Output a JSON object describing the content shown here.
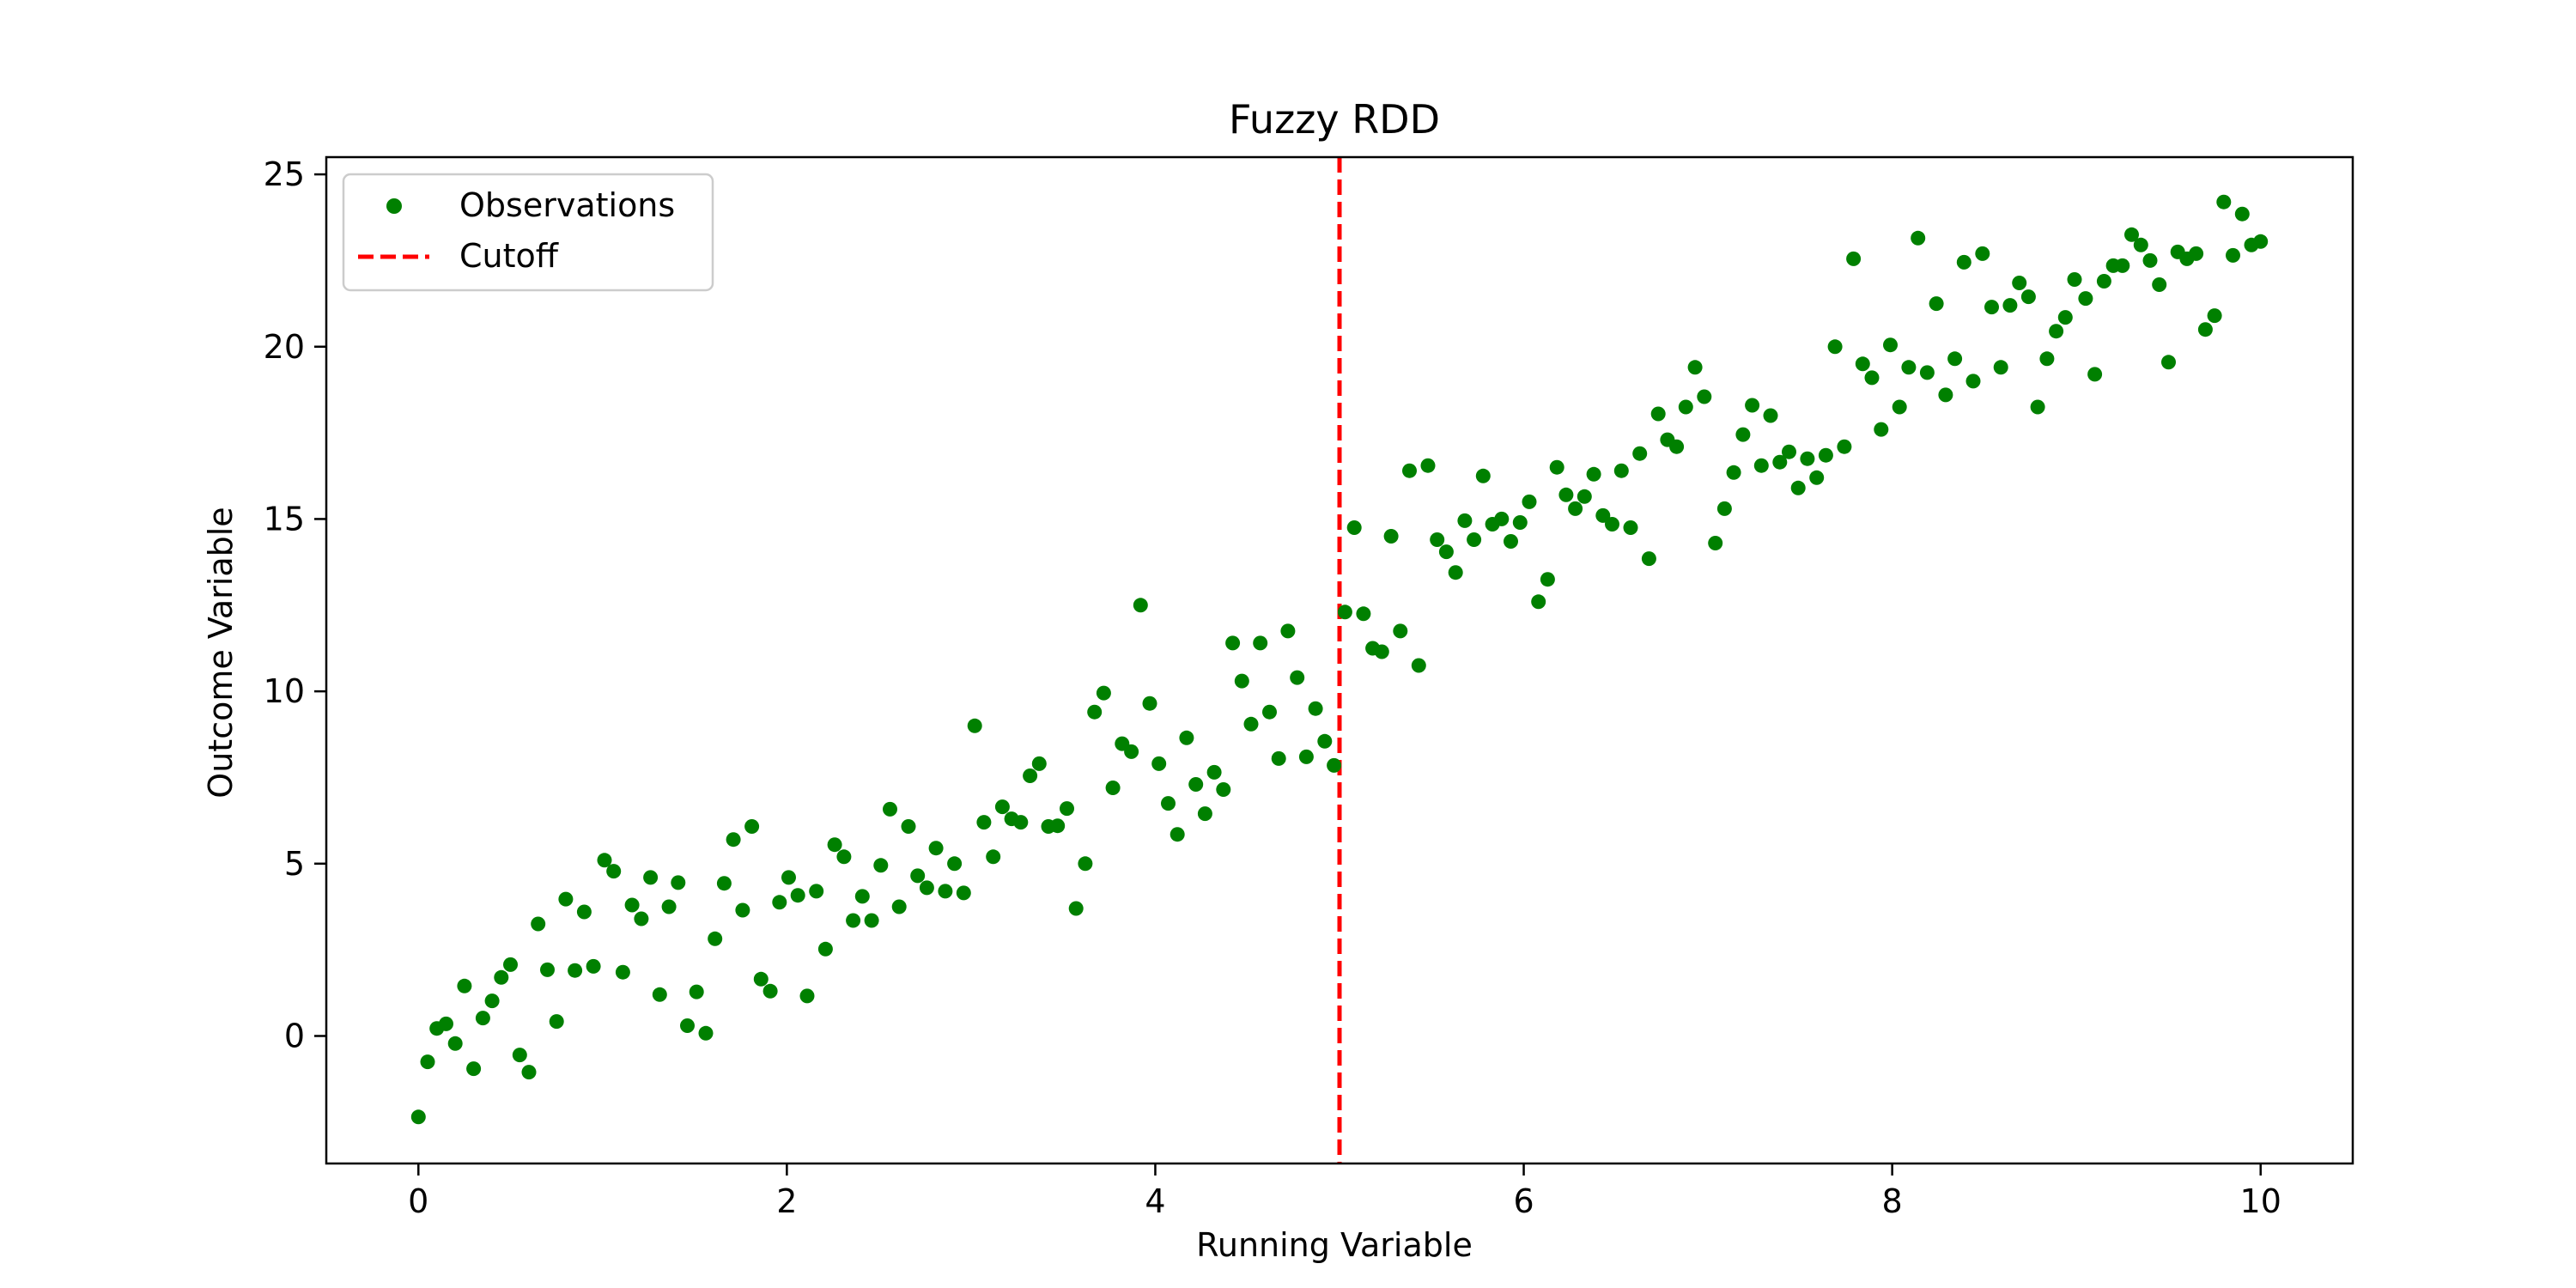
{
  "chart_data": {
    "type": "scatter",
    "title": "Fuzzy RDD",
    "xlabel": "Running Variable",
    "ylabel": "Outcome Variable",
    "xlim": [
      -0.5,
      10.5
    ],
    "ylim": [
      -3.7,
      25.5
    ],
    "xticks": [
      0,
      2,
      4,
      6,
      8,
      10
    ],
    "yticks": [
      0,
      5,
      10,
      15,
      20,
      25
    ],
    "grid": false,
    "legend_position": "upper-left",
    "cutoff": 5,
    "series": [
      {
        "name": "Observations",
        "color": "#008000",
        "points": [
          [
            0.0,
            -2.35
          ],
          [
            0.05,
            -0.75
          ],
          [
            0.1,
            0.22
          ],
          [
            0.15,
            0.35
          ],
          [
            0.2,
            -0.22
          ],
          [
            0.25,
            1.45
          ],
          [
            0.3,
            -0.95
          ],
          [
            0.35,
            0.52
          ],
          [
            0.4,
            1.02
          ],
          [
            0.45,
            1.7
          ],
          [
            0.5,
            2.07
          ],
          [
            0.55,
            -0.55
          ],
          [
            0.6,
            -1.05
          ],
          [
            0.65,
            3.25
          ],
          [
            0.7,
            1.92
          ],
          [
            0.75,
            0.42
          ],
          [
            0.8,
            3.97
          ],
          [
            0.85,
            1.9
          ],
          [
            0.9,
            3.6
          ],
          [
            0.95,
            2.02
          ],
          [
            1.01,
            5.1
          ],
          [
            1.06,
            4.78
          ],
          [
            1.11,
            1.85
          ],
          [
            1.16,
            3.8
          ],
          [
            1.21,
            3.4
          ],
          [
            1.26,
            4.6
          ],
          [
            1.31,
            1.2
          ],
          [
            1.36,
            3.75
          ],
          [
            1.41,
            4.45
          ],
          [
            1.46,
            0.3
          ],
          [
            1.51,
            1.28
          ],
          [
            1.56,
            0.08
          ],
          [
            1.61,
            2.82
          ],
          [
            1.66,
            4.43
          ],
          [
            1.71,
            5.7
          ],
          [
            1.76,
            3.65
          ],
          [
            1.81,
            6.08
          ],
          [
            1.86,
            1.65
          ],
          [
            1.91,
            1.3
          ],
          [
            1.96,
            3.88
          ],
          [
            2.01,
            4.6
          ],
          [
            2.06,
            4.08
          ],
          [
            2.11,
            1.16
          ],
          [
            2.16,
            4.2
          ],
          [
            2.21,
            2.52
          ],
          [
            2.26,
            5.55
          ],
          [
            2.31,
            5.2
          ],
          [
            2.36,
            3.35
          ],
          [
            2.41,
            4.05
          ],
          [
            2.46,
            3.35
          ],
          [
            2.51,
            4.95
          ],
          [
            2.56,
            6.58
          ],
          [
            2.61,
            3.75
          ],
          [
            2.66,
            6.08
          ],
          [
            2.71,
            4.65
          ],
          [
            2.76,
            4.3
          ],
          [
            2.81,
            5.45
          ],
          [
            2.86,
            4.2
          ],
          [
            2.91,
            5.0
          ],
          [
            2.96,
            4.15
          ],
          [
            3.02,
            9.0
          ],
          [
            3.07,
            6.2
          ],
          [
            3.12,
            5.2
          ],
          [
            3.17,
            6.65
          ],
          [
            3.22,
            6.3
          ],
          [
            3.27,
            6.2
          ],
          [
            3.32,
            7.55
          ],
          [
            3.37,
            7.9
          ],
          [
            3.42,
            6.08
          ],
          [
            3.47,
            6.1
          ],
          [
            3.52,
            6.6
          ],
          [
            3.57,
            3.7
          ],
          [
            3.62,
            5.0
          ],
          [
            3.67,
            9.4
          ],
          [
            3.72,
            9.95
          ],
          [
            3.77,
            7.2
          ],
          [
            3.82,
            8.48
          ],
          [
            3.87,
            8.25
          ],
          [
            3.92,
            12.5
          ],
          [
            3.97,
            9.65
          ],
          [
            4.02,
            7.9
          ],
          [
            4.07,
            6.75
          ],
          [
            4.12,
            5.85
          ],
          [
            4.17,
            8.65
          ],
          [
            4.22,
            7.3
          ],
          [
            4.27,
            6.45
          ],
          [
            4.32,
            7.65
          ],
          [
            4.37,
            7.15
          ],
          [
            4.42,
            11.4
          ],
          [
            4.47,
            10.3
          ],
          [
            4.52,
            9.05
          ],
          [
            4.57,
            11.4
          ],
          [
            4.62,
            9.4
          ],
          [
            4.67,
            8.05
          ],
          [
            4.72,
            11.75
          ],
          [
            4.77,
            10.4
          ],
          [
            4.82,
            8.1
          ],
          [
            4.87,
            9.5
          ],
          [
            4.92,
            8.55
          ],
          [
            4.97,
            7.85
          ],
          [
            5.03,
            12.3
          ],
          [
            5.08,
            14.75
          ],
          [
            5.13,
            12.25
          ],
          [
            5.18,
            11.25
          ],
          [
            5.23,
            11.15
          ],
          [
            5.28,
            14.5
          ],
          [
            5.33,
            11.75
          ],
          [
            5.38,
            16.4
          ],
          [
            5.43,
            10.75
          ],
          [
            5.48,
            16.55
          ],
          [
            5.53,
            14.4
          ],
          [
            5.58,
            14.05
          ],
          [
            5.63,
            13.45
          ],
          [
            5.68,
            14.95
          ],
          [
            5.73,
            14.4
          ],
          [
            5.78,
            16.25
          ],
          [
            5.83,
            14.85
          ],
          [
            5.88,
            15.0
          ],
          [
            5.93,
            14.35
          ],
          [
            5.98,
            14.9
          ],
          [
            6.03,
            15.5
          ],
          [
            6.08,
            12.6
          ],
          [
            6.13,
            13.25
          ],
          [
            6.18,
            16.5
          ],
          [
            6.23,
            15.7
          ],
          [
            6.28,
            15.3
          ],
          [
            6.33,
            15.65
          ],
          [
            6.38,
            16.3
          ],
          [
            6.43,
            15.1
          ],
          [
            6.48,
            14.85
          ],
          [
            6.53,
            16.4
          ],
          [
            6.58,
            14.75
          ],
          [
            6.63,
            16.9
          ],
          [
            6.68,
            13.85
          ],
          [
            6.73,
            18.05
          ],
          [
            6.78,
            17.3
          ],
          [
            6.83,
            17.1
          ],
          [
            6.88,
            18.25
          ],
          [
            6.93,
            19.4
          ],
          [
            6.98,
            18.55
          ],
          [
            7.04,
            14.3
          ],
          [
            7.09,
            15.3
          ],
          [
            7.14,
            16.35
          ],
          [
            7.19,
            17.45
          ],
          [
            7.24,
            18.3
          ],
          [
            7.29,
            16.55
          ],
          [
            7.34,
            18.0
          ],
          [
            7.39,
            16.65
          ],
          [
            7.44,
            16.95
          ],
          [
            7.49,
            15.9
          ],
          [
            7.54,
            16.75
          ],
          [
            7.59,
            16.2
          ],
          [
            7.64,
            16.85
          ],
          [
            7.69,
            20.0
          ],
          [
            7.74,
            17.1
          ],
          [
            7.79,
            22.55
          ],
          [
            7.84,
            19.5
          ],
          [
            7.89,
            19.1
          ],
          [
            7.94,
            17.6
          ],
          [
            7.99,
            20.05
          ],
          [
            8.04,
            18.25
          ],
          [
            8.09,
            19.4
          ],
          [
            8.14,
            23.15
          ],
          [
            8.19,
            19.25
          ],
          [
            8.24,
            21.25
          ],
          [
            8.29,
            18.6
          ],
          [
            8.34,
            19.65
          ],
          [
            8.39,
            22.45
          ],
          [
            8.44,
            19.0
          ],
          [
            8.49,
            22.7
          ],
          [
            8.54,
            21.15
          ],
          [
            8.59,
            19.4
          ],
          [
            8.64,
            21.2
          ],
          [
            8.69,
            21.85
          ],
          [
            8.74,
            21.45
          ],
          [
            8.79,
            18.25
          ],
          [
            8.84,
            19.65
          ],
          [
            8.89,
            20.45
          ],
          [
            8.94,
            20.85
          ],
          [
            8.99,
            21.95
          ],
          [
            9.05,
            21.4
          ],
          [
            9.1,
            19.2
          ],
          [
            9.15,
            21.9
          ],
          [
            9.2,
            22.35
          ],
          [
            9.25,
            22.35
          ],
          [
            9.3,
            23.25
          ],
          [
            9.35,
            22.95
          ],
          [
            9.4,
            22.5
          ],
          [
            9.45,
            21.8
          ],
          [
            9.5,
            19.55
          ],
          [
            9.55,
            22.75
          ],
          [
            9.6,
            22.55
          ],
          [
            9.65,
            22.7
          ],
          [
            9.7,
            20.5
          ],
          [
            9.75,
            20.9
          ],
          [
            9.8,
            24.2
          ],
          [
            9.85,
            22.65
          ],
          [
            9.9,
            23.85
          ],
          [
            9.95,
            22.95
          ],
          [
            10.0,
            23.05
          ]
        ]
      },
      {
        "name": "Cutoff",
        "color": "#ff0000",
        "style": "dashed"
      }
    ]
  }
}
